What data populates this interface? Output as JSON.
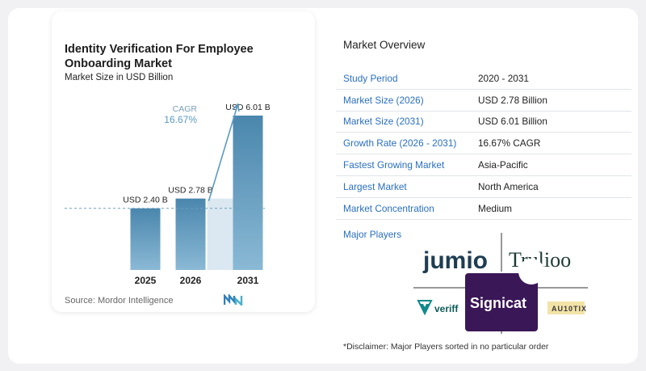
{
  "chart": {
    "title": "Identity Verification For Employee Onboarding Market",
    "subtitle": "Market Size in USD Billion",
    "source": "Source:  Mordor Intelligence",
    "cagr_label": "CAGR",
    "cagr_value": "16.67%"
  },
  "chart_data": {
    "type": "bar",
    "title": "Identity Verification For Employee Onboarding Market",
    "subtitle": "Market Size in USD Billion",
    "categories": [
      "2025",
      "2026",
      "2031"
    ],
    "values": [
      2.4,
      2.78,
      6.01
    ],
    "data_labels": [
      "USD 2.40 B",
      "USD 2.78 B",
      "USD 6.01 B"
    ],
    "ylim": [
      0,
      6.5
    ],
    "grid": false,
    "annotation": {
      "text": "CAGR 16.67%",
      "from": "2026",
      "to": "2031"
    },
    "colors": {
      "bar": "#5b9bc0",
      "bar_top": "#4a86ad",
      "shade": "#dbe8f1",
      "arrow": "#5b9bc0",
      "cagr_text": "#5b9bc0"
    }
  },
  "overview": {
    "title": "Market Overview",
    "rows": [
      {
        "key": "Study Period",
        "value": "2020 - 2031"
      },
      {
        "key": "Market Size (2026)",
        "value": "USD 2.78 Billion"
      },
      {
        "key": "Market Size (2031)",
        "value": "USD 6.01 Billion"
      },
      {
        "key": "Growth Rate (2026 - 2031)",
        "value": "16.67% CAGR"
      },
      {
        "key": "Fastest Growing Market",
        "value": "Asia-Pacific"
      },
      {
        "key": "Largest Market",
        "value": "North America"
      },
      {
        "key": "Market Concentration",
        "value": "Medium"
      }
    ]
  },
  "players": {
    "label": "Major Players",
    "logos": [
      "jumio",
      "Trulioo",
      "veriff",
      "Signicat",
      "AU10TIX"
    ]
  },
  "disclaimer": "*Disclaimer: Major Players sorted in no particular order"
}
